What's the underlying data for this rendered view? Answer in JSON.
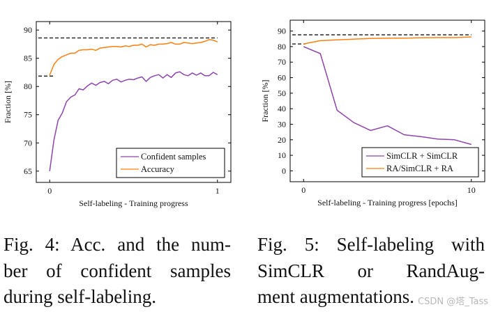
{
  "chart_data": [
    {
      "type": "line",
      "xlabel": "Self-labeling - Training progress",
      "ylabel": "Fraction [%]",
      "xlim": [
        -0.08,
        1.08
      ],
      "ylim": [
        63,
        91.5
      ],
      "xticks": [
        0,
        1
      ],
      "yticks": [
        65,
        70,
        75,
        80,
        85,
        90
      ],
      "grid": false,
      "legend_position": "bottom-right",
      "reference_lines": [
        {
          "y": 88.6,
          "x_range": [
            -0.08,
            1.0
          ],
          "style": "dashed",
          "color": "#000000"
        },
        {
          "y": 81.85,
          "x_range": [
            -0.08,
            0.02
          ],
          "style": "dashed",
          "color": "#000000"
        }
      ],
      "x": [
        0,
        0.025,
        0.05,
        0.075,
        0.1,
        0.125,
        0.15,
        0.175,
        0.2,
        0.225,
        0.25,
        0.275,
        0.3,
        0.325,
        0.35,
        0.375,
        0.4,
        0.425,
        0.45,
        0.475,
        0.5,
        0.525,
        0.55,
        0.575,
        0.6,
        0.625,
        0.65,
        0.675,
        0.7,
        0.725,
        0.75,
        0.775,
        0.8,
        0.825,
        0.85,
        0.875,
        0.9,
        0.925,
        0.95,
        0.975,
        1.0
      ],
      "series": [
        {
          "name": "Confident samples",
          "color": "#8e44ad",
          "values": [
            65,
            70.5,
            74,
            75.3,
            77.3,
            78.1,
            78.5,
            79.6,
            79.4,
            80.1,
            80.6,
            80.2,
            80.7,
            80.9,
            80.5,
            81.1,
            81.3,
            80.8,
            81.1,
            81.3,
            81.2,
            81.5,
            81.7,
            80.9,
            81.6,
            81.9,
            82.1,
            81.5,
            82.1,
            81.6,
            82.4,
            82.6,
            82.1,
            81.9,
            82.4,
            82.0,
            82.4,
            81.9,
            81.9,
            82.5,
            82.1
          ]
        },
        {
          "name": "Accuracy",
          "color": "#ff7f0e",
          "values": [
            82.0,
            83.9,
            84.8,
            85.3,
            85.6,
            85.9,
            85.9,
            86.4,
            86.5,
            86.5,
            86.6,
            86.4,
            86.8,
            86.9,
            87.0,
            87.1,
            87.1,
            87.0,
            87.2,
            87.1,
            87.3,
            87.3,
            87.5,
            87.0,
            87.4,
            87.3,
            87.5,
            87.5,
            87.6,
            87.8,
            87.5,
            87.5,
            87.8,
            87.7,
            87.6,
            87.7,
            87.8,
            88.0,
            88.3,
            88.2,
            87.9
          ]
        }
      ]
    },
    {
      "type": "line",
      "xlabel": "Self-labeling - Training progress [epochs]",
      "ylabel": "Fraction [%]",
      "xlim": [
        -0.8,
        10.8
      ],
      "ylim": [
        -7,
        97
      ],
      "xticks": [
        0,
        10
      ],
      "yticks": [
        0,
        10,
        20,
        30,
        40,
        50,
        60,
        70,
        80,
        90
      ],
      "grid": false,
      "legend_position": "bottom-right",
      "reference_lines": [
        {
          "y": 87.6,
          "x_range": [
            -0.8,
            10.0
          ],
          "style": "dashed",
          "color": "#000000"
        },
        {
          "y": 81.7,
          "x_range": [
            -0.8,
            0.1
          ],
          "style": "dashed",
          "color": "#000000"
        }
      ],
      "x": [
        0,
        1,
        2,
        3,
        4,
        5,
        6,
        7,
        8,
        9,
        10
      ],
      "series": [
        {
          "name": "SimCLR + SimCLR",
          "color": "#8e44ad",
          "values": [
            80,
            75.5,
            39,
            31,
            26,
            29,
            23.2,
            22,
            20.5,
            20,
            17
          ]
        },
        {
          "name": "RA/SimCLR + RA",
          "color": "#ff7f0e",
          "values": [
            81.7,
            83.8,
            84.3,
            84.8,
            85.2,
            85.4,
            85.5,
            85.7,
            85.8,
            85.8,
            86.2
          ]
        }
      ]
    }
  ],
  "captions": {
    "fig4": [
      "Fig. 4: Acc. and the num-",
      "ber of confident samples",
      "during self-labeling."
    ],
    "fig5": [
      "Fig. 5: Self-labeling with",
      "SimCLR or RandAug-",
      "ment augmentations."
    ]
  },
  "watermark": "CSDN @塔_Tass"
}
